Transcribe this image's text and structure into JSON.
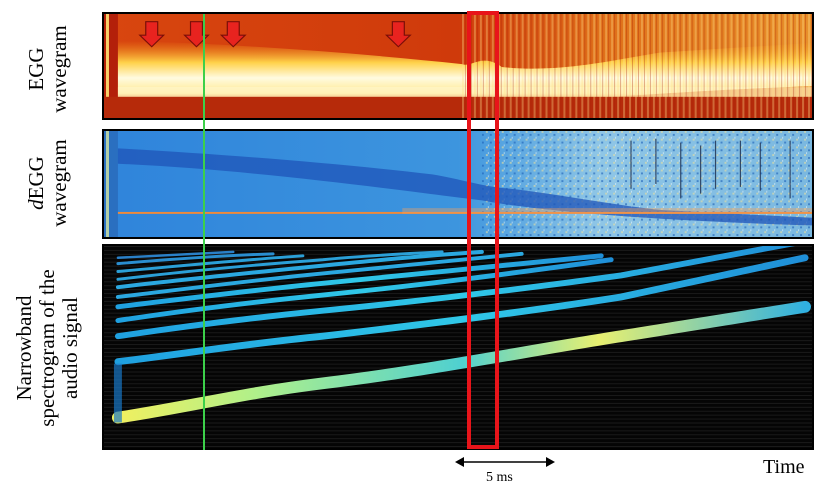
{
  "panels": {
    "egg": {
      "label_line1": "EGG",
      "label_line2": "wavegram"
    },
    "degg": {
      "label_line1_italic": "d",
      "label_line1_rest": "EGG",
      "label_line2": "wavegram"
    },
    "spectrogram": {
      "label_line1": "Narrowband",
      "label_line2": "spectrogram of the",
      "label_line3": "audio signal"
    }
  },
  "axis": {
    "time_label": "Time"
  },
  "scale_bar": {
    "label": "5 ms"
  },
  "markers": {
    "arrow_count": 4,
    "arrow_color": "#e8231f"
  },
  "colors": {
    "highlight_box": "#e8141a",
    "cursor_line": "#3cd04a",
    "egg_background": "#c8300c",
    "degg_background": "#3a8fd8",
    "spectrogram_background": "#050505"
  }
}
